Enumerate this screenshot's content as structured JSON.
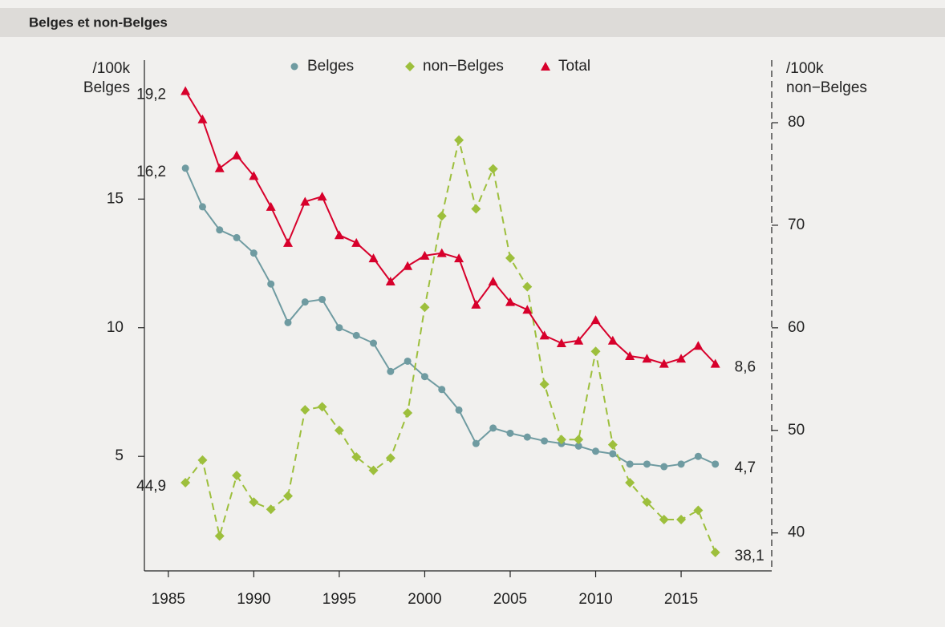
{
  "chart_data": {
    "type": "line",
    "title": "Belges et non-Belges",
    "ylabel": [
      "/100k",
      "Belges"
    ],
    "y2label": [
      "/100k",
      "non−Belges"
    ],
    "x": [
      1986,
      1987,
      1988,
      1989,
      1990,
      1991,
      1992,
      1993,
      1994,
      1995,
      1996,
      1997,
      1998,
      1999,
      2000,
      2001,
      2002,
      2003,
      2004,
      2005,
      2006,
      2007,
      2008,
      2009,
      2010,
      2011,
      2012,
      2013,
      2014,
      2015,
      2016,
      2017
    ],
    "xlim": [
      1983.6,
      2020.3
    ],
    "xticks": [
      1985,
      1990,
      1995,
      2000,
      2005,
      2010,
      2015
    ],
    "ylim": [
      0.55,
      20.4
    ],
    "yticks": [
      5,
      10,
      15
    ],
    "y2lim": [
      36.3,
      86.1
    ],
    "y2ticks": [
      40,
      50,
      60,
      70,
      80
    ],
    "grid": false,
    "legend": "top",
    "series": [
      {
        "name": "Belges",
        "color": "#6f9ba1",
        "marker": "circle",
        "line_style": "solid",
        "values": [
          16.2,
          14.7,
          13.8,
          13.5,
          12.9,
          11.7,
          10.2,
          11.0,
          11.1,
          10.0,
          9.7,
          9.4,
          8.3,
          8.7,
          8.1,
          7.6,
          6.8,
          5.5,
          6.1,
          5.9,
          5.75,
          5.6,
          5.5,
          5.4,
          5.2,
          5.1,
          4.7,
          4.7,
          4.6,
          4.7,
          5.0,
          4.7
        ],
        "value_labels": [
          "16,2",
          null,
          null,
          null,
          null,
          null,
          null,
          null,
          null,
          null,
          null,
          null,
          null,
          null,
          null,
          null,
          null,
          null,
          null,
          null,
          null,
          null,
          null,
          null,
          null,
          null,
          null,
          null,
          null,
          null,
          null,
          "4,7"
        ]
      },
      {
        "name": "non−Belges",
        "color": "#9dbf3c",
        "marker": "diamond",
        "line_style": "dashed",
        "axis": "y2",
        "values": [
          44.9,
          47.1,
          39.7,
          45.6,
          43.0,
          42.3,
          43.6,
          52.0,
          52.3,
          50.0,
          47.4,
          46.1,
          47.3,
          51.7,
          62.0,
          70.9,
          78.3,
          71.6,
          75.5,
          66.8,
          64.0,
          54.5,
          49.1,
          49.1,
          57.7,
          48.6,
          44.9,
          43.0,
          41.3,
          41.3,
          42.2,
          38.1
        ],
        "value_labels": [
          "44,9",
          null,
          null,
          null,
          null,
          null,
          null,
          null,
          null,
          null,
          null,
          null,
          null,
          null,
          null,
          null,
          null,
          null,
          null,
          null,
          null,
          null,
          null,
          null,
          null,
          null,
          null,
          null,
          null,
          null,
          null,
          "38,1"
        ]
      },
      {
        "name": "Total",
        "color": "#d7002b",
        "marker": "triangle",
        "line_style": "solid",
        "values": [
          19.2,
          18.1,
          16.2,
          16.7,
          15.9,
          14.7,
          13.3,
          14.9,
          15.1,
          13.6,
          13.3,
          12.7,
          11.8,
          12.4,
          12.8,
          12.9,
          12.7,
          10.9,
          11.8,
          11.0,
          10.7,
          9.7,
          9.4,
          9.5,
          10.3,
          9.5,
          8.9,
          8.8,
          8.6,
          8.8,
          9.3,
          8.6
        ],
        "value_labels": [
          "19,2",
          null,
          null,
          null,
          null,
          null,
          null,
          null,
          null,
          null,
          null,
          null,
          null,
          null,
          null,
          null,
          null,
          null,
          null,
          null,
          null,
          null,
          null,
          null,
          null,
          null,
          null,
          null,
          null,
          null,
          null,
          "8,6"
        ]
      }
    ]
  }
}
